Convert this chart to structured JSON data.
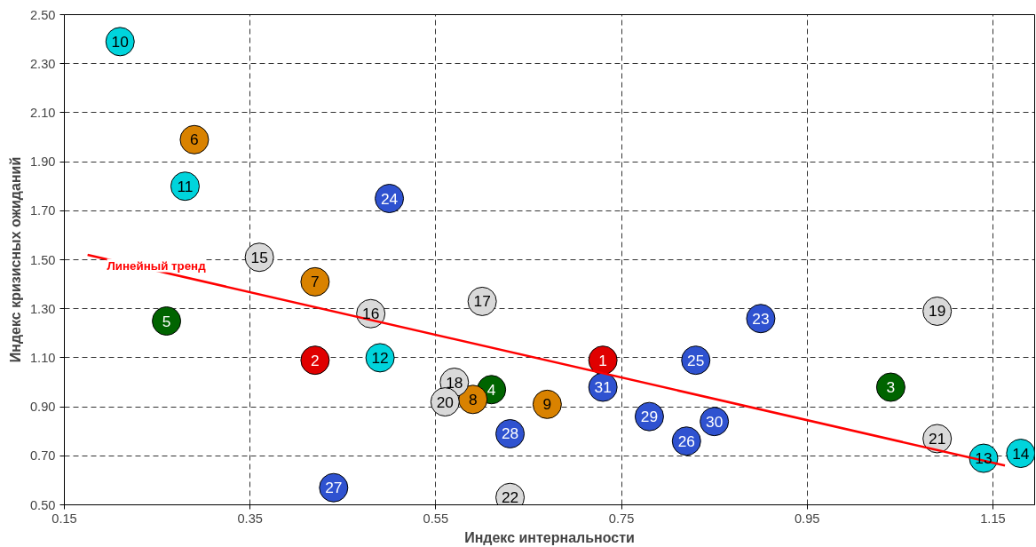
{
  "chart_data": {
    "type": "scatter",
    "xlabel": "Индекс интернальности",
    "ylabel": "Индекс кризисных ожиданий",
    "xlim": [
      0.15,
      1.195
    ],
    "ylim": [
      0.5,
      2.5
    ],
    "xticks": [
      0.15,
      0.35,
      0.55,
      0.75,
      0.95,
      1.15
    ],
    "yticks": [
      {
        "value": 0.5,
        "label": "0.50"
      },
      {
        "value": 0.7,
        "label": "0.70"
      },
      {
        "value": 0.9,
        "label": "0.90"
      },
      {
        "value": 1.1,
        "label": "1.10"
      },
      {
        "value": 1.3,
        "label": "1.30"
      },
      {
        "value": 1.5,
        "label": "1.50"
      },
      {
        "value": 1.7,
        "label": "1.70"
      },
      {
        "value": 1.9,
        "label": "1.90"
      },
      {
        "value": 2.1,
        "label": "2.10"
      },
      {
        "value": 2.3,
        "label": "2.30"
      },
      {
        "value": 2.5,
        "label": "2.50"
      }
    ],
    "grid": true,
    "marker": "circle",
    "annotations": [
      "Линейный тренд"
    ],
    "series": [
      {
        "name": "1",
        "color": "#e00000",
        "x": [
          0.73
        ],
        "values": [
          1.09
        ]
      },
      {
        "name": "2",
        "color": "#e00000",
        "x": [
          0.42
        ],
        "values": [
          1.09
        ]
      },
      {
        "name": "3",
        "color": "#006400",
        "x": [
          1.04
        ],
        "values": [
          0.98
        ]
      },
      {
        "name": "4",
        "color": "#006400",
        "x": [
          0.61
        ],
        "values": [
          0.97
        ]
      },
      {
        "name": "5",
        "color": "#006400",
        "x": [
          0.26
        ],
        "values": [
          1.25
        ]
      },
      {
        "name": "6",
        "color": "#d98200",
        "x": [
          0.29
        ],
        "values": [
          1.99
        ]
      },
      {
        "name": "7",
        "color": "#d98200",
        "x": [
          0.42
        ],
        "values": [
          1.41
        ]
      },
      {
        "name": "8",
        "color": "#d98200",
        "x": [
          0.59
        ],
        "values": [
          0.93
        ]
      },
      {
        "name": "9",
        "color": "#d98200",
        "x": [
          0.67
        ],
        "values": [
          0.91
        ]
      },
      {
        "name": "10",
        "color": "#00d4dc",
        "x": [
          0.21
        ],
        "values": [
          2.39
        ]
      },
      {
        "name": "11",
        "color": "#00d4dc",
        "x": [
          0.28
        ],
        "values": [
          1.8
        ]
      },
      {
        "name": "12",
        "color": "#00d4dc",
        "x": [
          0.49
        ],
        "values": [
          1.1
        ]
      },
      {
        "name": "13",
        "color": "#00d4dc",
        "x": [
          1.14
        ],
        "values": [
          0.69
        ]
      },
      {
        "name": "14",
        "color": "#00d4dc",
        "x": [
          1.18
        ],
        "values": [
          0.71
        ]
      },
      {
        "name": "15",
        "color": "#d9d9d9",
        "x": [
          0.36
        ],
        "values": [
          1.51
        ]
      },
      {
        "name": "16",
        "color": "#d9d9d9",
        "x": [
          0.48
        ],
        "values": [
          1.28
        ]
      },
      {
        "name": "17",
        "color": "#d9d9d9",
        "x": [
          0.6
        ],
        "values": [
          1.33
        ]
      },
      {
        "name": "18",
        "color": "#d9d9d9",
        "x": [
          0.57
        ],
        "values": [
          1.0
        ]
      },
      {
        "name": "19",
        "color": "#d9d9d9",
        "x": [
          1.09
        ],
        "values": [
          1.29
        ]
      },
      {
        "name": "20",
        "color": "#d9d9d9",
        "x": [
          0.56
        ],
        "values": [
          0.92
        ]
      },
      {
        "name": "21",
        "color": "#d9d9d9",
        "x": [
          1.09
        ],
        "values": [
          0.77
        ]
      },
      {
        "name": "22",
        "color": "#d9d9d9",
        "x": [
          0.63
        ],
        "values": [
          0.53
        ]
      },
      {
        "name": "23",
        "color": "#2f52d0",
        "x": [
          0.9
        ],
        "values": [
          1.26
        ]
      },
      {
        "name": "24",
        "color": "#2f52d0",
        "x": [
          0.5
        ],
        "values": [
          1.75
        ]
      },
      {
        "name": "25",
        "color": "#2f52d0",
        "x": [
          0.83
        ],
        "values": [
          1.09
        ]
      },
      {
        "name": "26",
        "color": "#2f52d0",
        "x": [
          0.82
        ],
        "values": [
          0.76
        ]
      },
      {
        "name": "27",
        "color": "#2f52d0",
        "x": [
          0.44
        ],
        "values": [
          0.57
        ]
      },
      {
        "name": "28",
        "color": "#2f52d0",
        "x": [
          0.63
        ],
        "values": [
          0.79
        ]
      },
      {
        "name": "29",
        "color": "#2f52d0",
        "x": [
          0.78
        ],
        "values": [
          0.86
        ]
      },
      {
        "name": "30",
        "color": "#2f52d0",
        "x": [
          0.85
        ],
        "values": [
          0.84
        ]
      },
      {
        "name": "31",
        "color": "#2f52d0",
        "x": [
          0.73
        ],
        "values": [
          0.98
        ]
      },
      {
        "type": "line",
        "marker": "none",
        "color": "#ff0000",
        "x": [
          0.175,
          1.163
        ],
        "values": [
          1.52,
          0.66
        ]
      }
    ]
  }
}
